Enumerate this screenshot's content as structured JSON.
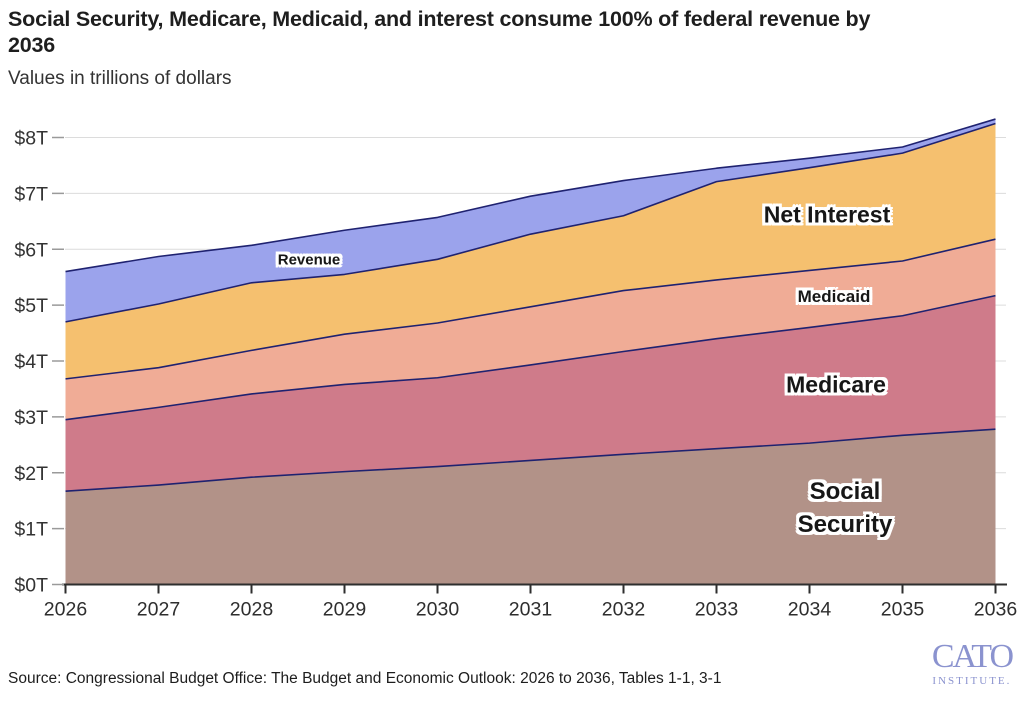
{
  "header": {
    "title_lines": [
      "Social Security, Medicare, Medicaid, and interest consume 100% of federal revenue by",
      "2036"
    ],
    "subtitle": "Values in trillions of dollars"
  },
  "chart_data": {
    "type": "area",
    "stacked": true,
    "title": "Social Security, Medicare, Medicaid, and interest consume 100% of federal revenue by 2036",
    "x": [
      2026,
      2027,
      2028,
      2029,
      2030,
      2031,
      2032,
      2033,
      2034,
      2035,
      2036
    ],
    "x_tick_labels": [
      "2026",
      "2027",
      "2028",
      "2029",
      "2030",
      "2031",
      "2032",
      "2033",
      "2034",
      "2035",
      "2036"
    ],
    "y_ticks": [
      0,
      1,
      2,
      3,
      4,
      5,
      6,
      7,
      8
    ],
    "y_tick_labels": [
      "$0T",
      "$1T",
      "$2T",
      "$3T",
      "$4T",
      "$5T",
      "$6T",
      "$7T",
      "$8T"
    ],
    "ylim": [
      0,
      8.5
    ],
    "grid": "horizontal",
    "legend_position": "labels-inside-areas",
    "series": [
      {
        "name": "Social Security",
        "color": "#b29288",
        "values": [
          1.67,
          1.78,
          1.92,
          2.02,
          2.11,
          2.22,
          2.33,
          2.43,
          2.53,
          2.67,
          2.78
        ]
      },
      {
        "name": "Medicare",
        "color": "#cf7b8a",
        "values": [
          1.28,
          1.39,
          1.49,
          1.56,
          1.59,
          1.71,
          1.84,
          1.97,
          2.07,
          2.14,
          2.39
        ]
      },
      {
        "name": "Medicaid",
        "color": "#f0ac96",
        "values": [
          0.73,
          0.71,
          0.78,
          0.9,
          0.98,
          1.04,
          1.09,
          1.05,
          1.02,
          0.98,
          1.01
        ]
      },
      {
        "name": "Net Interest",
        "color": "#f5c06f",
        "values": [
          1.02,
          1.14,
          1.21,
          1.07,
          1.14,
          1.3,
          1.34,
          1.76,
          1.84,
          1.93,
          2.07
        ]
      }
    ],
    "revenue_overlay": {
      "name": "Revenue",
      "fill_color": "#9ba3ec",
      "values": [
        5.6,
        5.87,
        6.07,
        6.34,
        6.57,
        6.95,
        7.23,
        7.45,
        7.63,
        7.83,
        8.33
      ]
    },
    "boundary_line_color": "#1f2270",
    "gridline_color": "#dcdcdc",
    "axis_color": "#2e2e2e",
    "tick_label_color": "#333333"
  },
  "footer": {
    "source": "Source: Congressional Budget Office: The Budget and Economic Outlook: 2026 to 2036, Tables 1-1, 3-1",
    "logo_primary": "CATO",
    "logo_secondary": "INSTITUTE."
  }
}
